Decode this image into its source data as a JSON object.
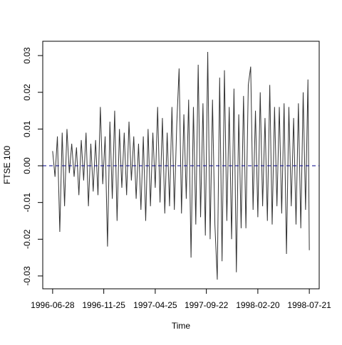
{
  "chart_data": {
    "type": "line",
    "xlabel": "Time",
    "ylabel": "FTSE 100",
    "color": "#333333",
    "x": [
      "1996-06-28",
      "1996-07-05",
      "1996-07-12",
      "1996-07-19",
      "1996-07-26",
      "1996-08-02",
      "1996-08-09",
      "1996-08-16",
      "1996-08-23",
      "1996-08-30",
      "1996-09-06",
      "1996-09-13",
      "1996-09-20",
      "1996-09-27",
      "1996-10-04",
      "1996-10-11",
      "1996-10-18",
      "1996-10-25",
      "1996-11-01",
      "1996-11-08",
      "1996-11-15",
      "1996-11-22",
      "1996-11-29",
      "1996-12-06",
      "1996-12-13",
      "1996-12-20",
      "1996-12-27",
      "1997-01-03",
      "1997-01-10",
      "1997-01-17",
      "1997-01-24",
      "1997-01-31",
      "1997-02-07",
      "1997-02-14",
      "1997-02-21",
      "1997-02-28",
      "1997-03-07",
      "1997-03-14",
      "1997-03-21",
      "1997-03-28",
      "1997-04-04",
      "1997-04-11",
      "1997-04-18",
      "1997-04-25",
      "1997-05-02",
      "1997-05-09",
      "1997-05-16",
      "1997-05-23",
      "1997-05-30",
      "1997-06-06",
      "1997-06-13",
      "1997-06-20",
      "1997-06-27",
      "1997-07-04",
      "1997-07-11",
      "1997-07-18",
      "1997-07-25",
      "1997-08-01",
      "1997-08-08",
      "1997-08-15",
      "1997-08-22",
      "1997-08-29",
      "1997-09-05",
      "1997-09-12",
      "1997-09-19",
      "1997-09-26",
      "1997-10-03",
      "1997-10-10",
      "1997-10-17",
      "1997-10-24",
      "1997-10-31",
      "1997-11-07",
      "1997-11-14",
      "1997-11-21",
      "1997-11-28",
      "1997-12-05",
      "1997-12-12",
      "1997-12-19",
      "1997-12-26",
      "1998-01-02",
      "1998-01-09",
      "1998-01-16",
      "1998-01-23",
      "1998-01-30",
      "1998-02-06",
      "1998-02-13",
      "1998-02-20",
      "1998-02-27",
      "1998-03-06",
      "1998-03-13",
      "1998-03-20",
      "1998-03-27",
      "1998-04-03",
      "1998-04-10",
      "1998-04-17",
      "1998-04-24",
      "1998-05-01",
      "1998-05-08",
      "1998-05-15",
      "1998-05-22",
      "1998-05-29",
      "1998-06-05",
      "1998-06-12",
      "1998-06-19",
      "1998-06-26",
      "1998-07-03",
      "1998-07-10",
      "1998-07-17",
      "1998-07-21"
    ],
    "values": [
      0.004,
      -0.003,
      0.008,
      -0.018,
      0.009,
      -0.011,
      0.01,
      -0.002,
      0.006,
      -0.003,
      0.005,
      -0.008,
      0.007,
      -0.004,
      0.009,
      -0.011,
      0.006,
      -0.007,
      0.007,
      -0.008,
      0.016,
      -0.005,
      0.008,
      -0.022,
      0.012,
      -0.009,
      0.015,
      -0.015,
      0.01,
      -0.006,
      0.009,
      -0.008,
      0.012,
      -0.004,
      0.008,
      -0.009,
      0.006,
      -0.012,
      0.008,
      -0.015,
      0.01,
      -0.011,
      0.009,
      -0.006,
      0.016,
      -0.01,
      0.013,
      -0.013,
      0.009,
      -0.011,
      0.016,
      -0.012,
      0.011,
      0.0265,
      -0.013,
      0.014,
      -0.009,
      0.018,
      -0.025,
      0.016,
      -0.016,
      0.0275,
      -0.014,
      0.017,
      -0.019,
      0.031,
      -0.02,
      0.018,
      -0.016,
      -0.031,
      0.024,
      -0.026,
      0.026,
      -0.015,
      0.016,
      -0.02,
      0.021,
      -0.029,
      0.014,
      -0.017,
      0.019,
      -0.017,
      0.022,
      0.027,
      -0.012,
      0.015,
      -0.014,
      0.02,
      -0.011,
      0.013,
      -0.015,
      0.022,
      -0.016,
      0.016,
      -0.011,
      0.016,
      -0.013,
      0.017,
      -0.024,
      0.016,
      -0.011,
      0.013,
      -0.016,
      0.017,
      -0.017,
      0.02,
      -0.012,
      0.0235,
      -0.023
    ],
    "xlim": [
      "1996-05-30",
      "1998-08-19"
    ],
    "xticks": [
      "1996-06-28",
      "1996-11-25",
      "1997-04-25",
      "1997-09-22",
      "1998-02-20",
      "1998-07-21"
    ],
    "ylim": [
      -0.0335,
      0.0339
    ],
    "yticks": [
      -0.03,
      -0.02,
      -0.01,
      {
        "value": 0,
        "label": "0.00"
      },
      0.01,
      0.02,
      0.03
    ],
    "reference_line": {
      "value": 0,
      "color": "#00008b",
      "style": "dashed"
    }
  }
}
